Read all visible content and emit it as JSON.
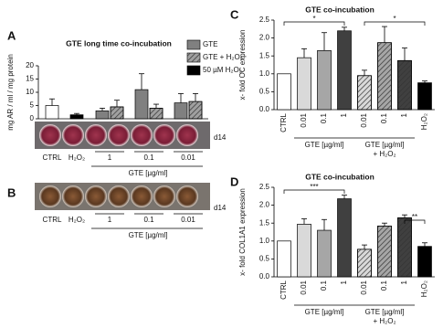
{
  "chart_data": [
    {
      "type": "grouped-bar",
      "panel_label": "A",
      "title": "GTE long time co-incubation",
      "ylabel": "mg AR / ml / mg protein",
      "categories": [
        "CTRL",
        "H₂O₂",
        "1",
        "0.1",
        "0.01"
      ],
      "control": {
        "color": "#ffffff",
        "value": 5,
        "error": 2.5
      },
      "series": [
        {
          "name": "GTE",
          "color": "#808080",
          "hatch": false,
          "values": [
            null,
            null,
            3,
            11,
            6
          ],
          "errors": [
            null,
            null,
            1,
            6,
            3.5
          ]
        },
        {
          "name": "GTE + H₂O₂",
          "color": "#a0a0a0",
          "hatch": true,
          "values": [
            null,
            null,
            4.5,
            4,
            6.5
          ],
          "errors": [
            null,
            null,
            2.5,
            1.5,
            3
          ]
        },
        {
          "name": "50 µM H₂O₂",
          "color": "#000000",
          "hatch": false,
          "values": [
            null,
            1.5,
            null,
            null,
            null
          ],
          "errors": [
            null,
            0.5,
            null,
            null,
            null
          ]
        }
      ],
      "ylim": [
        0,
        20
      ],
      "yticks": [
        0,
        5,
        10,
        15,
        20
      ],
      "xlabel": "GTE [µg/ml]",
      "day": "d14"
    },
    {
      "type": "image",
      "panel_label": "B",
      "categories": [
        "CTRL",
        "H₂O₂",
        "1",
        "0.1",
        "0.01"
      ],
      "xlabel": "GTE [µg/ml]",
      "day": "d14"
    },
    {
      "type": "bar",
      "panel_label": "C",
      "title": "GTE co-incubation",
      "ylabel": "x- fold OC expression",
      "categories": [
        "CTRL",
        "0.01",
        "0.1",
        "1",
        "0.01",
        "0.1",
        "1",
        "H₂O₂"
      ],
      "values": [
        1.0,
        1.45,
        1.65,
        2.2,
        0.95,
        1.87,
        1.37,
        0.75
      ],
      "errors": [
        0,
        0.25,
        0.5,
        0.1,
        0.15,
        0.45,
        0.35,
        0.05
      ],
      "colors": [
        "#ffffff",
        "#d9d9d9",
        "#a6a6a6",
        "#404040",
        "#d9d9d9",
        "#a6a6a6",
        "#404040",
        "#000000"
      ],
      "hatch": [
        false,
        false,
        false,
        false,
        true,
        true,
        true,
        false
      ],
      "ylim": [
        0,
        2.5
      ],
      "yticks": [
        {
          "value": 0,
          "label": "0.0"
        },
        0.5,
        {
          "value": 1,
          "label": "1.0"
        },
        1.5,
        {
          "value": 2,
          "label": "2.0"
        },
        2.5
      ],
      "significance": [
        "*",
        "*"
      ],
      "groups": [
        "GTE [µg/ml]",
        "GTE [µg/ml]"
      ],
      "group_note": "+ H₂O₂"
    },
    {
      "type": "bar",
      "panel_label": "D",
      "title": "GTE co-incubation",
      "ylabel": "x- fold COL1A1 expression",
      "categories": [
        "CTRL",
        "0.01",
        "0.1",
        "1",
        "0.01",
        "0.1",
        "1",
        "H₂O₂"
      ],
      "values": [
        1.0,
        1.47,
        1.3,
        2.18,
        0.77,
        1.42,
        1.65,
        0.85
      ],
      "errors": [
        0,
        0.15,
        0.3,
        0.1,
        0.12,
        0.08,
        0.08,
        0.1
      ],
      "colors": [
        "#ffffff",
        "#d9d9d9",
        "#a6a6a6",
        "#404040",
        "#d9d9d9",
        "#a6a6a6",
        "#404040",
        "#000000"
      ],
      "hatch": [
        false,
        false,
        false,
        false,
        true,
        true,
        true,
        false
      ],
      "ylim": [
        0,
        2.5
      ],
      "yticks": [
        {
          "value": 0,
          "label": "0.0"
        },
        0.5,
        {
          "value": 1,
          "label": "1.0"
        },
        1.5,
        {
          "value": 2,
          "label": "2.0"
        },
        2.5
      ],
      "significance": [
        "***",
        "**"
      ],
      "groups": [
        "GTE [µg/ml]",
        "GTE [µg/ml]"
      ],
      "group_note": "+ H₂O₂"
    }
  ]
}
